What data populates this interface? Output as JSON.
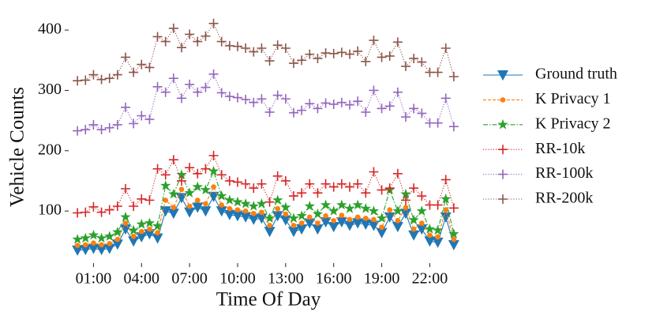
{
  "chart_data": {
    "type": "line",
    "xlabel": "Time Of Day",
    "ylabel": "Vehicle Counts",
    "x": [
      0,
      0.5,
      1,
      1.5,
      2,
      2.5,
      3,
      3.5,
      4,
      4.5,
      5,
      5.5,
      6,
      6.5,
      7,
      7.5,
      8,
      8.5,
      9,
      9.5,
      10,
      10.5,
      11,
      11.5,
      12,
      12.5,
      13,
      13.5,
      14,
      14.5,
      15,
      15.5,
      16,
      16.5,
      17,
      17.5,
      18,
      18.5,
      19,
      19.5,
      20,
      20.5,
      21,
      21.5,
      22,
      22.5,
      23,
      23.5
    ],
    "xlim": [
      -0.5,
      24
    ],
    "xticks": [
      {
        "value": 1,
        "label": "01:00"
      },
      {
        "value": 4,
        "label": "04:00"
      },
      {
        "value": 7,
        "label": "07:00"
      },
      {
        "value": 10,
        "label": "10:00"
      },
      {
        "value": 13,
        "label": "13:00"
      },
      {
        "value": 16,
        "label": "16:00"
      },
      {
        "value": 19,
        "label": "19:00"
      },
      {
        "value": 22,
        "label": "22:00"
      }
    ],
    "ylim": [
      15,
      425
    ],
    "yticks": [
      100,
      200,
      300,
      400
    ],
    "grid": false,
    "legend": "right",
    "series": [
      {
        "name": "Ground truth",
        "color": "#1f77b4",
        "marker": "triangle-down",
        "linestyle": "solid",
        "values": [
          35,
          36,
          38,
          36,
          38,
          45,
          70,
          50,
          57,
          62,
          55,
          100,
          96,
          122,
          98,
          106,
          100,
          124,
          100,
          94,
          92,
          90,
          86,
          88,
          66,
          92,
          85,
          66,
          70,
          80,
          70,
          82,
          74,
          82,
          76,
          80,
          78,
          76,
          64,
          90,
          74,
          96,
          60,
          70,
          50,
          48,
          90,
          44
        ]
      },
      {
        "name": "K Privacy 1",
        "color": "#ff7f0e",
        "marker": "circle",
        "linestyle": "dashed",
        "values": [
          43,
          44,
          47,
          44,
          46,
          53,
          80,
          58,
          66,
          70,
          64,
          118,
          106,
          136,
          108,
          118,
          112,
          140,
          110,
          104,
          102,
          100,
          96,
          98,
          76,
          104,
          95,
          76,
          80,
          90,
          80,
          92,
          84,
          93,
          86,
          90,
          88,
          86,
          73,
          102,
          84,
          106,
          70,
          80,
          60,
          57,
          102,
          53
        ]
      },
      {
        "name": "K Privacy 2",
        "color": "#2ca02c",
        "marker": "star",
        "linestyle": "dashdot",
        "values": [
          53,
          55,
          60,
          55,
          58,
          65,
          90,
          68,
          78,
          80,
          75,
          142,
          128,
          160,
          130,
          140,
          135,
          166,
          125,
          118,
          115,
          112,
          108,
          112,
          88,
          118,
          106,
          88,
          92,
          108,
          95,
          110,
          100,
          110,
          104,
          110,
          104,
          100,
          88,
          135,
          100,
          128,
          85,
          100,
          70,
          68,
          120,
          62
        ]
      },
      {
        "name": "RR-10k",
        "color": "#d62728",
        "marker": "plus",
        "linestyle": "dotted",
        "values": [
          97,
          98,
          107,
          98,
          102,
          108,
          137,
          108,
          120,
          118,
          170,
          160,
          185,
          150,
          172,
          162,
          170,
          192,
          160,
          150,
          148,
          145,
          138,
          145,
          115,
          158,
          150,
          125,
          130,
          145,
          130,
          145,
          140,
          145,
          140,
          145,
          130,
          165,
          135,
          138,
          162,
          118,
          138,
          125,
          110,
          110,
          152,
          105
        ]
      },
      {
        "name": "RR-100k",
        "color": "#9467bd",
        "marker": "plus",
        "linestyle": "dotted",
        "values": [
          233,
          235,
          243,
          235,
          238,
          243,
          272,
          245,
          258,
          252,
          306,
          297,
          320,
          287,
          310,
          297,
          305,
          327,
          296,
          290,
          288,
          285,
          280,
          286,
          264,
          292,
          286,
          263,
          267,
          278,
          270,
          279,
          277,
          280,
          276,
          282,
          264,
          300,
          270,
          274,
          297,
          256,
          270,
          262,
          246,
          246,
          287,
          240
        ]
      },
      {
        "name": "RR-200k",
        "color": "#8c564b",
        "marker": "plus",
        "linestyle": "dotted",
        "values": [
          316,
          317,
          326,
          318,
          320,
          326,
          355,
          330,
          343,
          338,
          389,
          381,
          403,
          371,
          393,
          381,
          390,
          411,
          381,
          374,
          373,
          370,
          364,
          370,
          349,
          375,
          370,
          345,
          350,
          360,
          353,
          362,
          361,
          363,
          360,
          365,
          348,
          383,
          355,
          357,
          380,
          340,
          353,
          347,
          330,
          330,
          370,
          323
        ]
      }
    ]
  }
}
